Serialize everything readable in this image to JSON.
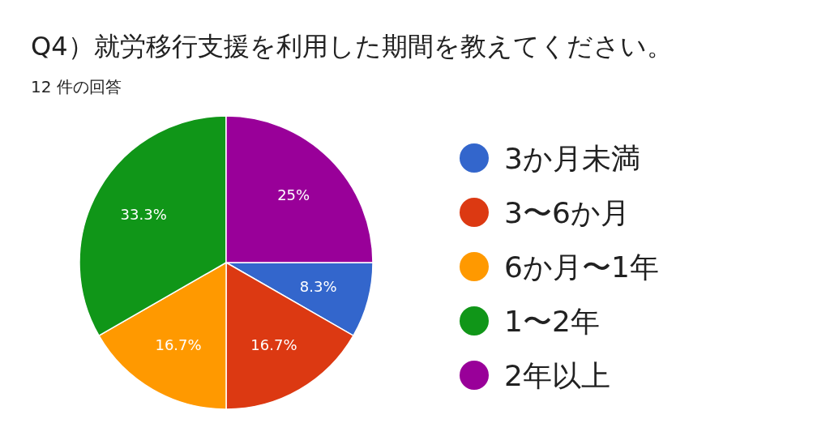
{
  "chart_data": {
    "type": "pie",
    "title": "Q4）就労移行支援を利用した期間を教えてください。",
    "subtitle": "12 件の回答",
    "categories": [
      "3か月未満",
      "3〜6か月",
      "6か月〜1年",
      "1〜2年",
      "2年以上"
    ],
    "values": [
      8.3,
      16.7,
      16.7,
      33.3,
      25
    ],
    "colors": [
      "#3366cc",
      "#dc3912",
      "#ff9900",
      "#109618",
      "#990099"
    ],
    "value_labels": [
      "8.3%",
      "16.7%",
      "16.7%",
      "33.3%",
      "25%"
    ],
    "legend": "right"
  }
}
